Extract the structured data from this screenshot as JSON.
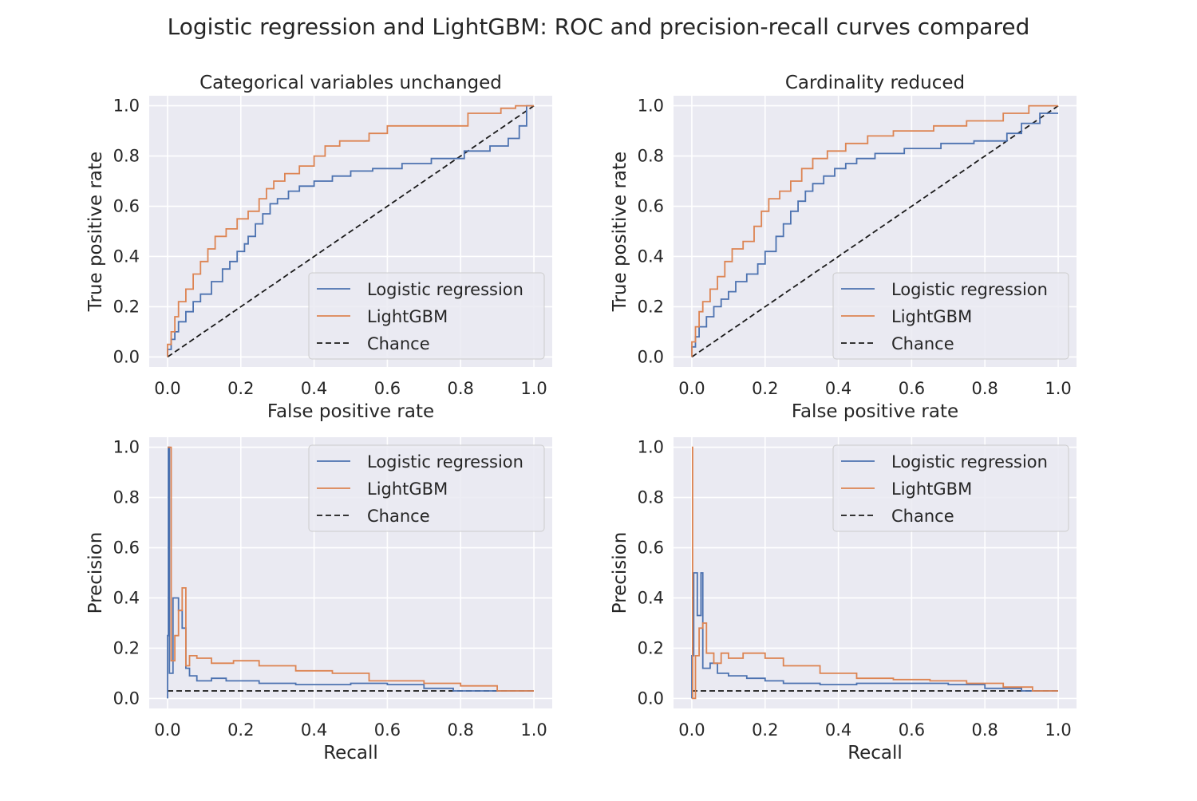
{
  "figure": {
    "title": "Logistic regression and LightGBM: ROC and precision-recall curves compared",
    "colors": {
      "logistic": "#4c72b0",
      "lightgbm": "#dd8452",
      "chance": "#1a1a1a",
      "panel_bg": "#eaeaf2",
      "grid": "#ffffff"
    }
  },
  "chart_data": [
    {
      "type": "line",
      "panel": "top-left",
      "title": "Categorical variables unchanged",
      "xlabel": "False positive rate",
      "ylabel": "True positive rate",
      "xlim": [
        -0.05,
        1.05
      ],
      "ylim": [
        -0.04,
        1.04
      ],
      "xticks": [
        "0.0",
        "0.2",
        "0.4",
        "0.6",
        "0.8",
        "1.0"
      ],
      "yticks": [
        "0.0",
        "0.2",
        "0.4",
        "0.6",
        "0.8",
        "1.0"
      ],
      "grid": true,
      "legend": {
        "placement": "lower-right",
        "entries": [
          "Logistic regression",
          "LightGBM",
          "Chance"
        ]
      },
      "series": [
        {
          "name": "Logistic regression",
          "color": "#4c72b0",
          "style": "solid",
          "x": [
            0,
            0,
            0.01,
            0.01,
            0.02,
            0.02,
            0.03,
            0.03,
            0.05,
            0.05,
            0.07,
            0.07,
            0.09,
            0.09,
            0.12,
            0.12,
            0.15,
            0.15,
            0.17,
            0.17,
            0.19,
            0.19,
            0.21,
            0.21,
            0.22,
            0.22,
            0.24,
            0.24,
            0.26,
            0.26,
            0.28,
            0.28,
            0.3,
            0.3,
            0.33,
            0.33,
            0.36,
            0.36,
            0.4,
            0.4,
            0.45,
            0.45,
            0.5,
            0.5,
            0.56,
            0.56,
            0.64,
            0.64,
            0.72,
            0.72,
            0.81,
            0.81,
            0.88,
            0.88,
            0.93,
            0.93,
            0.96,
            0.96,
            0.98,
            0.98,
            1.0
          ],
          "y": [
            0,
            0.03,
            0.03,
            0.07,
            0.07,
            0.1,
            0.1,
            0.14,
            0.14,
            0.18,
            0.18,
            0.22,
            0.22,
            0.25,
            0.25,
            0.3,
            0.3,
            0.35,
            0.35,
            0.38,
            0.38,
            0.42,
            0.42,
            0.45,
            0.45,
            0.48,
            0.48,
            0.53,
            0.53,
            0.57,
            0.57,
            0.61,
            0.61,
            0.63,
            0.63,
            0.66,
            0.66,
            0.68,
            0.68,
            0.7,
            0.7,
            0.72,
            0.72,
            0.74,
            0.74,
            0.75,
            0.75,
            0.77,
            0.77,
            0.79,
            0.79,
            0.82,
            0.82,
            0.84,
            0.84,
            0.87,
            0.87,
            0.92,
            0.92,
            1.0,
            1.0
          ]
        },
        {
          "name": "LightGBM",
          "color": "#dd8452",
          "style": "solid",
          "x": [
            0,
            0,
            0.01,
            0.01,
            0.02,
            0.02,
            0.03,
            0.03,
            0.05,
            0.05,
            0.07,
            0.07,
            0.09,
            0.09,
            0.11,
            0.11,
            0.13,
            0.13,
            0.16,
            0.16,
            0.19,
            0.19,
            0.22,
            0.22,
            0.25,
            0.25,
            0.27,
            0.27,
            0.29,
            0.29,
            0.32,
            0.32,
            0.36,
            0.36,
            0.4,
            0.4,
            0.43,
            0.43,
            0.47,
            0.47,
            0.55,
            0.55,
            0.6,
            0.6,
            0.82,
            0.82,
            0.91,
            0.91,
            0.95,
            0.95,
            1.0
          ],
          "y": [
            0,
            0.05,
            0.05,
            0.1,
            0.1,
            0.16,
            0.16,
            0.22,
            0.22,
            0.27,
            0.27,
            0.33,
            0.33,
            0.38,
            0.38,
            0.43,
            0.43,
            0.48,
            0.48,
            0.51,
            0.51,
            0.55,
            0.55,
            0.58,
            0.58,
            0.63,
            0.63,
            0.67,
            0.67,
            0.7,
            0.7,
            0.73,
            0.73,
            0.76,
            0.76,
            0.8,
            0.8,
            0.84,
            0.84,
            0.86,
            0.86,
            0.89,
            0.89,
            0.92,
            0.92,
            0.97,
            0.97,
            0.99,
            0.99,
            1.0,
            1.0
          ]
        },
        {
          "name": "Chance",
          "color": "#1a1a1a",
          "style": "dashed",
          "x": [
            0,
            1
          ],
          "y": [
            0,
            1
          ]
        }
      ]
    },
    {
      "type": "line",
      "panel": "top-right",
      "title": "Cardinality reduced",
      "xlabel": "False positive rate",
      "ylabel": "True positive rate",
      "xlim": [
        -0.05,
        1.05
      ],
      "ylim": [
        -0.04,
        1.04
      ],
      "xticks": [
        "0.0",
        "0.2",
        "0.4",
        "0.6",
        "0.8",
        "1.0"
      ],
      "yticks": [
        "0.0",
        "0.2",
        "0.4",
        "0.6",
        "0.8",
        "1.0"
      ],
      "grid": true,
      "legend": {
        "placement": "lower-right",
        "entries": [
          "Logistic regression",
          "LightGBM",
          "Chance"
        ]
      },
      "series": [
        {
          "name": "Logistic regression",
          "color": "#4c72b0",
          "style": "solid",
          "x": [
            0,
            0,
            0.01,
            0.01,
            0.02,
            0.02,
            0.04,
            0.04,
            0.06,
            0.06,
            0.08,
            0.08,
            0.1,
            0.1,
            0.12,
            0.12,
            0.15,
            0.15,
            0.18,
            0.18,
            0.2,
            0.2,
            0.23,
            0.23,
            0.25,
            0.25,
            0.27,
            0.27,
            0.29,
            0.29,
            0.31,
            0.31,
            0.33,
            0.33,
            0.36,
            0.36,
            0.39,
            0.39,
            0.42,
            0.42,
            0.45,
            0.45,
            0.5,
            0.5,
            0.58,
            0.58,
            0.68,
            0.68,
            0.77,
            0.77,
            0.86,
            0.86,
            0.9,
            0.9,
            0.95,
            0.95,
            1.0
          ],
          "y": [
            0,
            0.04,
            0.04,
            0.08,
            0.08,
            0.12,
            0.12,
            0.16,
            0.16,
            0.2,
            0.2,
            0.23,
            0.23,
            0.26,
            0.26,
            0.3,
            0.3,
            0.33,
            0.33,
            0.37,
            0.37,
            0.42,
            0.42,
            0.48,
            0.48,
            0.53,
            0.53,
            0.58,
            0.58,
            0.62,
            0.62,
            0.66,
            0.66,
            0.69,
            0.69,
            0.72,
            0.72,
            0.75,
            0.75,
            0.77,
            0.77,
            0.79,
            0.79,
            0.81,
            0.81,
            0.83,
            0.83,
            0.85,
            0.85,
            0.86,
            0.86,
            0.89,
            0.89,
            0.93,
            0.93,
            0.97,
            0.97
          ]
        },
        {
          "name": "LightGBM",
          "color": "#dd8452",
          "style": "solid",
          "x": [
            0,
            0,
            0.01,
            0.01,
            0.02,
            0.02,
            0.03,
            0.03,
            0.05,
            0.05,
            0.07,
            0.07,
            0.09,
            0.09,
            0.11,
            0.11,
            0.14,
            0.14,
            0.17,
            0.17,
            0.19,
            0.19,
            0.21,
            0.21,
            0.24,
            0.24,
            0.27,
            0.27,
            0.3,
            0.3,
            0.33,
            0.33,
            0.37,
            0.37,
            0.42,
            0.42,
            0.48,
            0.48,
            0.55,
            0.55,
            0.66,
            0.66,
            0.75,
            0.75,
            0.85,
            0.85,
            0.92,
            0.92,
            1.0
          ],
          "y": [
            0,
            0.06,
            0.06,
            0.12,
            0.12,
            0.18,
            0.18,
            0.22,
            0.22,
            0.27,
            0.27,
            0.32,
            0.32,
            0.38,
            0.38,
            0.43,
            0.43,
            0.46,
            0.46,
            0.52,
            0.52,
            0.58,
            0.58,
            0.63,
            0.63,
            0.66,
            0.66,
            0.7,
            0.7,
            0.75,
            0.75,
            0.79,
            0.79,
            0.82,
            0.82,
            0.85,
            0.85,
            0.88,
            0.88,
            0.9,
            0.9,
            0.92,
            0.92,
            0.94,
            0.94,
            0.97,
            0.97,
            1.0,
            1.0
          ]
        },
        {
          "name": "Chance",
          "color": "#1a1a1a",
          "style": "dashed",
          "x": [
            0,
            1
          ],
          "y": [
            0,
            1
          ]
        }
      ]
    },
    {
      "type": "line",
      "panel": "bottom-left",
      "title": "",
      "xlabel": "Recall",
      "ylabel": "Precision",
      "xlim": [
        -0.05,
        1.05
      ],
      "ylim": [
        -0.04,
        1.04
      ],
      "xticks": [
        "0.0",
        "0.2",
        "0.4",
        "0.6",
        "0.8",
        "1.0"
      ],
      "yticks": [
        "0.0",
        "0.2",
        "0.4",
        "0.6",
        "0.8",
        "1.0"
      ],
      "grid": true,
      "legend": {
        "placement": "upper-right",
        "entries": [
          "Logistic regression",
          "LightGBM",
          "Chance"
        ]
      },
      "series": [
        {
          "name": "Logistic regression",
          "color": "#4c72b0",
          "style": "solid",
          "x": [
            0,
            0,
            0.002,
            0.002,
            0.005,
            0.005,
            0.015,
            0.015,
            0.03,
            0.03,
            0.04,
            0.04,
            0.05,
            0.05,
            0.06,
            0.06,
            0.08,
            0.08,
            0.12,
            0.12,
            0.16,
            0.16,
            0.25,
            0.25,
            0.35,
            0.35,
            0.5,
            0.5,
            0.6,
            0.6,
            0.7,
            0.7,
            0.78,
            0.78,
            0.9,
            0.9,
            1.0
          ],
          "y": [
            0,
            0.25,
            0.25,
            1.0,
            1.0,
            0.1,
            0.1,
            0.4,
            0.4,
            0.35,
            0.35,
            0.28,
            0.28,
            0.12,
            0.12,
            0.09,
            0.09,
            0.07,
            0.07,
            0.08,
            0.08,
            0.07,
            0.07,
            0.06,
            0.06,
            0.055,
            0.055,
            0.06,
            0.06,
            0.055,
            0.055,
            0.04,
            0.04,
            0.03,
            0.03,
            0.03,
            0.03
          ]
        },
        {
          "name": "LightGBM",
          "color": "#dd8452",
          "style": "solid",
          "x": [
            0,
            0,
            0.01,
            0.01,
            0.02,
            0.02,
            0.03,
            0.03,
            0.04,
            0.04,
            0.05,
            0.05,
            0.06,
            0.06,
            0.08,
            0.08,
            0.12,
            0.12,
            0.18,
            0.18,
            0.25,
            0.25,
            0.35,
            0.35,
            0.45,
            0.45,
            0.55,
            0.55,
            0.7,
            0.7,
            0.8,
            0.8,
            0.9,
            0.9,
            1.0
          ],
          "y": [
            1.0,
            1.0,
            1.0,
            0.15,
            0.15,
            0.25,
            0.25,
            0.35,
            0.35,
            0.44,
            0.44,
            0.13,
            0.13,
            0.17,
            0.17,
            0.16,
            0.16,
            0.14,
            0.14,
            0.15,
            0.15,
            0.13,
            0.13,
            0.11,
            0.11,
            0.1,
            0.1,
            0.07,
            0.07,
            0.06,
            0.06,
            0.05,
            0.05,
            0.03,
            0.03
          ]
        },
        {
          "name": "Chance",
          "color": "#1a1a1a",
          "style": "dashed",
          "x": [
            0,
            1
          ],
          "y": [
            0.03,
            0.03
          ]
        }
      ]
    },
    {
      "type": "line",
      "panel": "bottom-right",
      "title": "",
      "xlabel": "Recall",
      "ylabel": "Precision",
      "xlim": [
        -0.05,
        1.05
      ],
      "ylim": [
        -0.04,
        1.04
      ],
      "xticks": [
        "0.0",
        "0.2",
        "0.4",
        "0.6",
        "0.8",
        "1.0"
      ],
      "yticks": [
        "0.0",
        "0.2",
        "0.4",
        "0.6",
        "0.8",
        "1.0"
      ],
      "grid": true,
      "legend": {
        "placement": "upper-right",
        "entries": [
          "Logistic regression",
          "LightGBM",
          "Chance"
        ]
      },
      "series": [
        {
          "name": "Logistic regression",
          "color": "#4c72b0",
          "style": "solid",
          "x": [
            0,
            0,
            0.005,
            0.005,
            0.015,
            0.015,
            0.025,
            0.025,
            0.03,
            0.03,
            0.05,
            0.05,
            0.07,
            0.07,
            0.1,
            0.1,
            0.15,
            0.15,
            0.2,
            0.2,
            0.25,
            0.25,
            0.35,
            0.35,
            0.45,
            0.45,
            0.6,
            0.6,
            0.7,
            0.7,
            0.8,
            0.8,
            0.9,
            0.9,
            1.0
          ],
          "y": [
            0,
            0.17,
            0.17,
            0.5,
            0.5,
            0.33,
            0.33,
            0.5,
            0.5,
            0.12,
            0.12,
            0.14,
            0.14,
            0.1,
            0.1,
            0.09,
            0.09,
            0.08,
            0.08,
            0.07,
            0.07,
            0.06,
            0.06,
            0.055,
            0.055,
            0.06,
            0.06,
            0.06,
            0.06,
            0.055,
            0.055,
            0.04,
            0.04,
            0.03,
            0.03
          ]
        },
        {
          "name": "LightGBM",
          "color": "#dd8452",
          "style": "solid",
          "x": [
            0,
            0,
            0.002,
            0.002,
            0.01,
            0.01,
            0.02,
            0.02,
            0.03,
            0.03,
            0.04,
            0.04,
            0.06,
            0.06,
            0.08,
            0.08,
            0.1,
            0.1,
            0.14,
            0.14,
            0.2,
            0.2,
            0.25,
            0.25,
            0.35,
            0.35,
            0.45,
            0.45,
            0.55,
            0.55,
            0.65,
            0.65,
            0.75,
            0.75,
            0.85,
            0.85,
            0.93,
            0.93,
            1.0
          ],
          "y": [
            1.0,
            1.0,
            1.0,
            0.0,
            0.0,
            0.17,
            0.17,
            0.28,
            0.28,
            0.3,
            0.3,
            0.18,
            0.18,
            0.14,
            0.14,
            0.18,
            0.18,
            0.16,
            0.16,
            0.18,
            0.18,
            0.16,
            0.16,
            0.13,
            0.13,
            0.1,
            0.1,
            0.08,
            0.08,
            0.075,
            0.075,
            0.07,
            0.07,
            0.06,
            0.06,
            0.045,
            0.045,
            0.03,
            0.03
          ]
        },
        {
          "name": "Chance",
          "color": "#1a1a1a",
          "style": "dashed",
          "x": [
            0,
            1
          ],
          "y": [
            0.03,
            0.03
          ]
        }
      ]
    }
  ]
}
